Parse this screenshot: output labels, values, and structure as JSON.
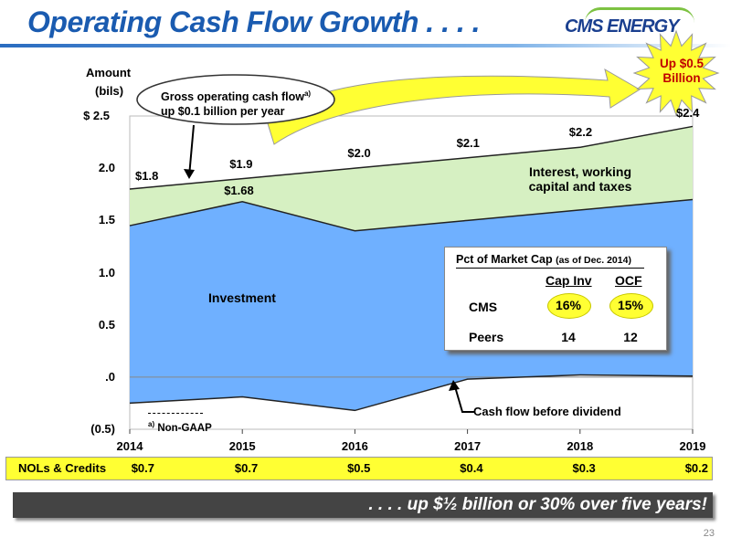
{
  "slide": {
    "title": "Operating Cash Flow Growth . . . .",
    "logo_text": "CMS ENERGY",
    "page_number": "23"
  },
  "chart_data": {
    "type": "area",
    "x": [
      2014,
      2015,
      2016,
      2017,
      2018,
      2019
    ],
    "xticks": [
      "2014",
      "2015",
      "2016",
      "2017",
      "2018",
      "2019"
    ],
    "yticks": [
      "$ 2.5",
      "2.0",
      "1.5",
      "1.0",
      "0.5",
      ".0",
      "(0.5)"
    ],
    "ylim": [
      -0.5,
      2.5
    ],
    "ylabel_line1": "Amount",
    "ylabel_line2": "(bils)",
    "series": [
      {
        "name": "Gross operating cash flow",
        "values": [
          1.8,
          1.9,
          2.0,
          2.1,
          2.2,
          2.4
        ],
        "color": "#d6f0c2"
      },
      {
        "name": "Investment",
        "values": [
          1.45,
          1.68,
          1.4,
          1.5,
          1.6,
          1.7
        ],
        "color": "#6fb0ff"
      },
      {
        "name": "Cash flow before dividend",
        "values": [
          -0.25,
          -0.19,
          -0.32,
          -0.02,
          0.02,
          0.01
        ],
        "color": "#000000"
      }
    ],
    "data_labels": {
      "gross": [
        "$1.8",
        "$1.9",
        "$2.0",
        "$2.1",
        "$2.2",
        "$2.4"
      ],
      "investment_2015": "$1.68"
    },
    "area_labels": {
      "investment": "Investment",
      "interest_line1": "Interest, working",
      "interest_line2": "capital and taxes"
    }
  },
  "callout": {
    "line1": "Gross operating cash flow",
    "footnote_mark": "a)",
    "line2": "up $0.1 billion per year"
  },
  "badge": {
    "line1": "Up $0.5",
    "line2": "Billion",
    "fill": "#ffff33",
    "text_color": "#c00000"
  },
  "pct_table": {
    "title": "Pct of Market Cap",
    "title_note": "(as of Dec. 2014)",
    "col1": "Cap Inv",
    "col2": "OCF",
    "rows": [
      {
        "label": "CMS",
        "cap_inv": "16%",
        "ocf": "15%"
      },
      {
        "label": "Peers",
        "cap_inv": "14",
        "ocf": "12"
      }
    ]
  },
  "footnote": {
    "mark": "a)",
    "text": "Non-GAAP"
  },
  "cash_flow_label": "Cash flow before dividend",
  "nol": {
    "label": "NOLs & Credits",
    "values": [
      "$0.7",
      "$0.7",
      "$0.5",
      "$0.4",
      "$0.3",
      "$0.2"
    ]
  },
  "banner": {
    "text": ". . . . up $½ billion or 30% over five years!"
  }
}
